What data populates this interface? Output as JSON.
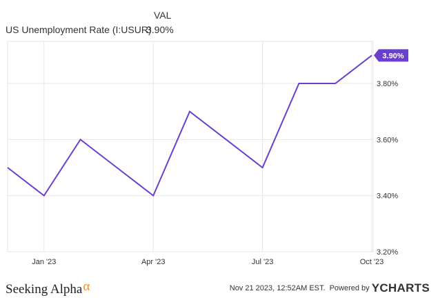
{
  "legend": {
    "column_header": "VAL",
    "series_name": "US Unemployment Rate (I:USUR)",
    "series_value": "3.90%"
  },
  "footer": {
    "brand": "Seeking Alpha",
    "brand_mark": "α",
    "timestamp": "Nov 21 2023, 12:52AM EST.",
    "powered_by": "Powered by",
    "provider": "YCHARTS"
  },
  "colors": {
    "series": "#6a3fd0",
    "grid": "#e6e6e6",
    "text": "#333333",
    "brand_accent": "#f08a24"
  },
  "chart_data": {
    "type": "line",
    "x": [
      "2022-12",
      "2023-01",
      "2023-02",
      "2023-03",
      "2023-04",
      "2023-05",
      "2023-06",
      "2023-07",
      "2023-08",
      "2023-09",
      "2023-10",
      "2023-11"
    ],
    "series": [
      {
        "name": "US Unemployment Rate (I:USUR)",
        "values": [
          3.5,
          3.4,
          3.6,
          3.5,
          3.4,
          3.7,
          3.6,
          3.5,
          3.8,
          3.8,
          3.9,
          null
        ]
      }
    ],
    "x_ticks": [
      "Jan '23",
      "Apr '23",
      "Jul '23",
      "Oct '23"
    ],
    "y_ticks": [
      "3.20%",
      "3.40%",
      "3.60%",
      "3.80%"
    ],
    "ylim": [
      3.2,
      3.95
    ],
    "last_value_label": "3.90%",
    "grid": true,
    "y_axis_position": "right"
  }
}
